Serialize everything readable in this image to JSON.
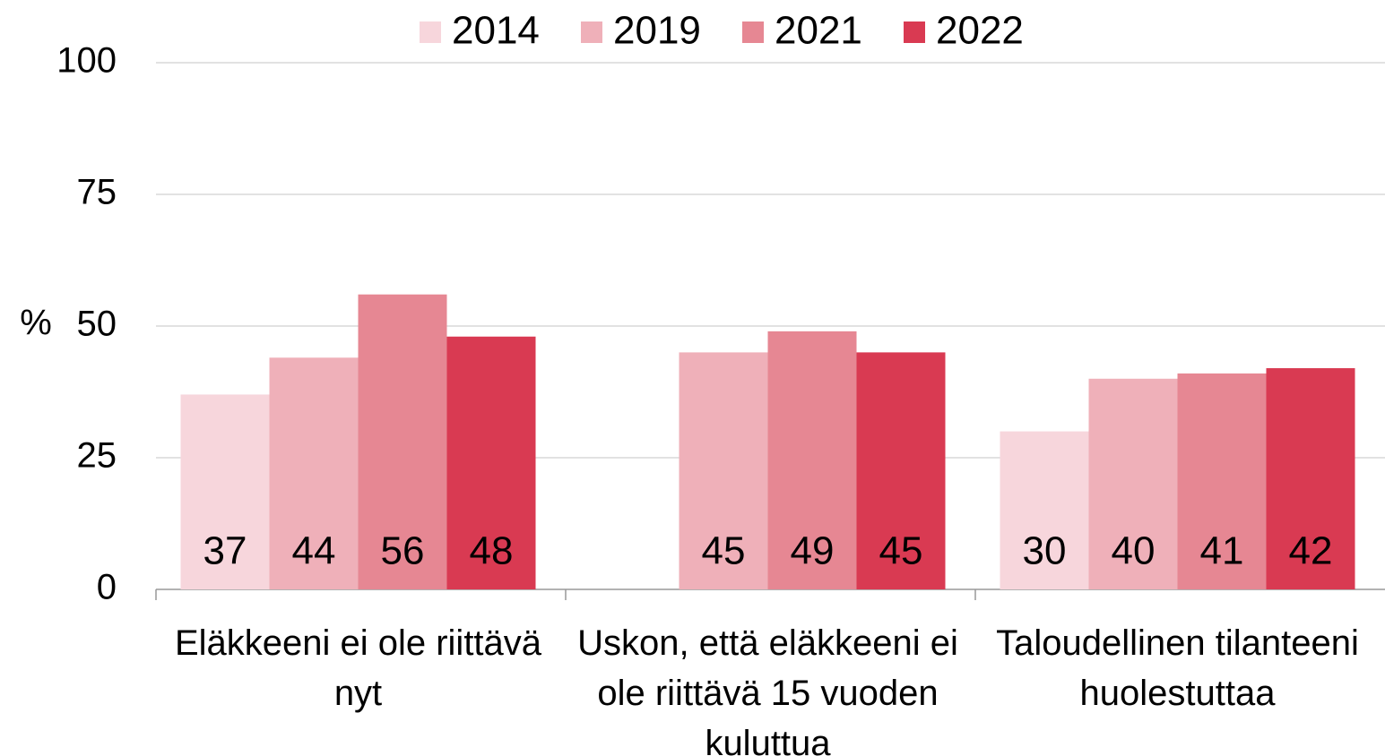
{
  "chart_data": {
    "type": "bar",
    "y_label": "%",
    "categories": [
      "Eläkkeeni ei ole riittävä nyt",
      "Uskon, että eläkkeeni ei ole riittävä 15 vuoden kuluttua",
      "Taloudellinen tilanteeni huolestuttaa"
    ],
    "series": [
      {
        "name": "2014",
        "color": "#f7d6dc",
        "values": [
          37,
          null,
          30
        ]
      },
      {
        "name": "2019",
        "color": "#efb0b9",
        "values": [
          44,
          45,
          40
        ]
      },
      {
        "name": "2021",
        "color": "#e68793",
        "values": [
          56,
          49,
          41
        ]
      },
      {
        "name": "2022",
        "color": "#d93a52",
        "values": [
          48,
          45,
          42
        ]
      }
    ],
    "ylim": [
      0,
      100
    ],
    "yticks": [
      0,
      25,
      50,
      75,
      100
    ],
    "grid": true,
    "legend": "top"
  }
}
